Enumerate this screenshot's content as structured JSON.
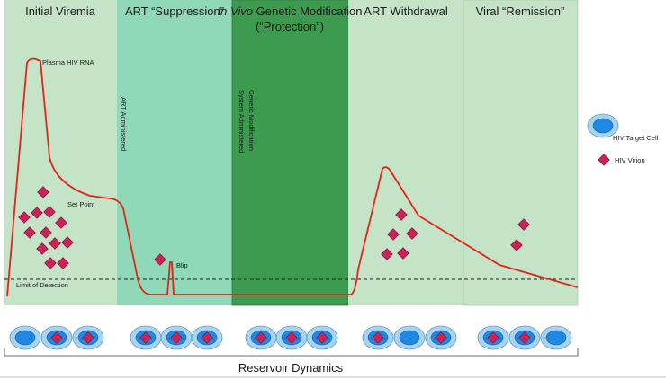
{
  "panels": [
    {
      "title": "Initial Viremia"
    },
    {
      "title": "ART “Suppression”"
    },
    {
      "title_italic": "In Vivo",
      "title": " Genetic Modification",
      "title_line2": "(“Protection”)"
    },
    {
      "title": "ART Withdrawal"
    },
    {
      "title": "Viral “Remission”"
    }
  ],
  "annotations": {
    "plasma": "Plasma HIV RNA",
    "art_administered": "ART Administered",
    "gene_line1": "Genetic Modification",
    "gene_line2": "System Administered",
    "set_point": "Set Point",
    "blip": "Blip",
    "limit": "Limit of Detection"
  },
  "legend": {
    "cell": "HIV Target Cell",
    "virion": "HIV Virion"
  },
  "footer": "Reservoir Dynamics"
}
